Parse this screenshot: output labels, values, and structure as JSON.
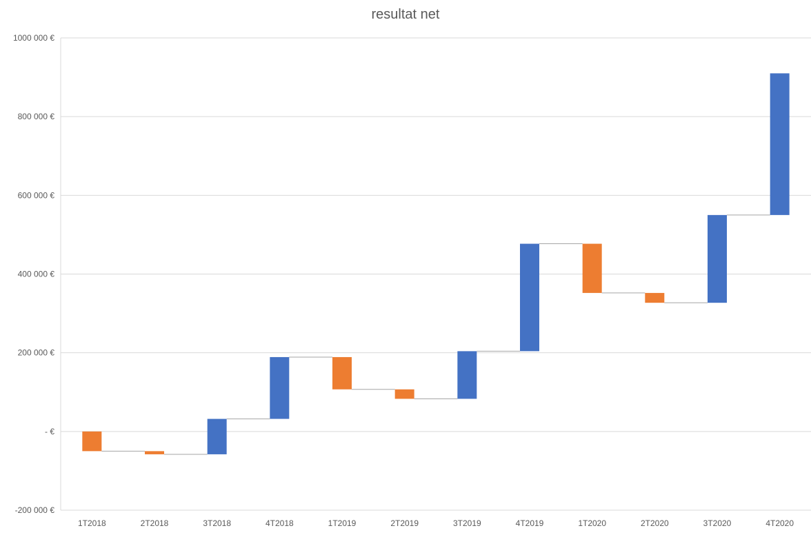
{
  "chart_data": {
    "type": "bar",
    "subtype": "waterfall",
    "title": "resultat net",
    "categories": [
      "1T2018",
      "2T2018",
      "3T2018",
      "4T2018",
      "1T2019",
      "2T2019",
      "3T2019",
      "4T2019",
      "1T2020",
      "2T2020",
      "3T2020",
      "4T2020"
    ],
    "series": [
      {
        "values": [
          -50000,
          -8000,
          90000,
          157000,
          -82000,
          -24000,
          121000,
          273000,
          -125000,
          -25000,
          223000,
          360000
        ]
      }
    ],
    "running_totals": [
      -50000,
      -58000,
      32000,
      189000,
      107000,
      83000,
      204000,
      477000,
      352000,
      327000,
      550000,
      910000
    ],
    "ylim": [
      -200000,
      1000000
    ],
    "yticks": [
      {
        "value": 1000000,
        "label": "1000 000 €"
      },
      {
        "value": 800000,
        "label": "800 000 €"
      },
      {
        "value": 600000,
        "label": "600 000 €"
      },
      {
        "value": 400000,
        "label": "400 000 €"
      },
      {
        "value": 200000,
        "label": "200 000 €"
      },
      {
        "value": 0,
        "label": "-   €"
      },
      {
        "value": -200000,
        "label": "-200 000 €"
      }
    ],
    "colors": {
      "increase": "#4472C4",
      "decrease": "#ED7D31",
      "connector": "#A5A5A5",
      "grid": "#D9D9D9"
    },
    "grid": true,
    "legend": "none"
  }
}
